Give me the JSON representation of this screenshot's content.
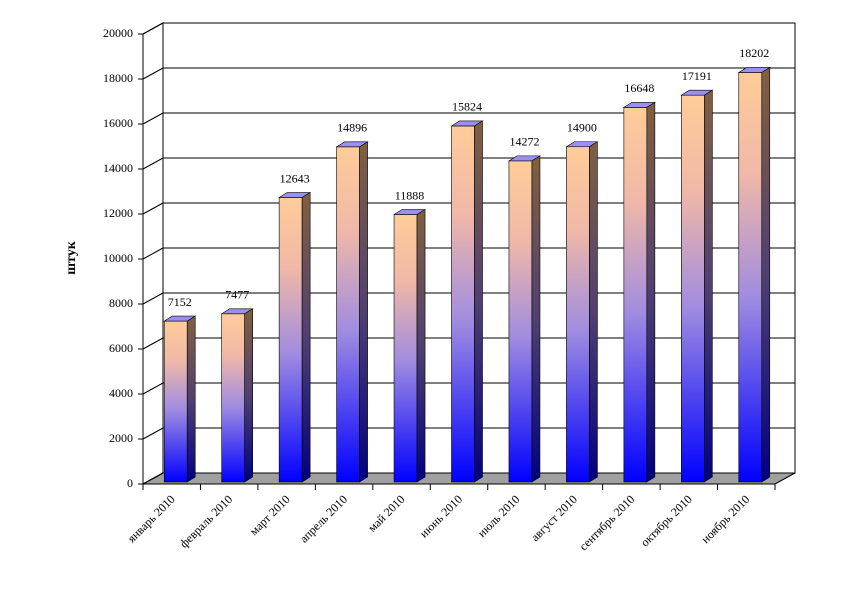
{
  "chart_data": {
    "type": "bar",
    "y_label": "штук",
    "categories": [
      "январь 2010",
      "февраль 2010",
      "март 2010",
      "апрель 2010",
      "май 2010",
      "июнь 2010",
      "июль 2010",
      "август 2010",
      "сентябрь 2010",
      "октябрь 2010",
      "ноябрь 2010"
    ],
    "values": [
      7152,
      7477,
      12643,
      14896,
      11888,
      15824,
      14272,
      14900,
      16648,
      17191,
      18202
    ],
    "ylim": [
      0,
      20000
    ],
    "yticks": [
      0,
      2000,
      4000,
      6000,
      8000,
      10000,
      12000,
      14000,
      16000,
      18000,
      20000
    ],
    "grid": true
  }
}
